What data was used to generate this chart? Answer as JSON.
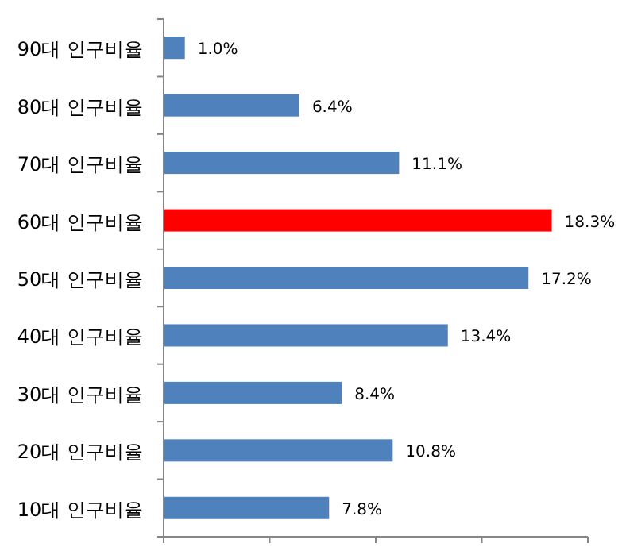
{
  "chart_data": {
    "type": "bar",
    "orientation": "horizontal",
    "categories": [
      "90대 인구비율",
      "80대 인구비율",
      "70대 인구비율",
      "60대 인구비율",
      "50대 인구비율",
      "40대 인구비율",
      "30대 인구비율",
      "20대 인구비율",
      "10대 인구비율"
    ],
    "values": [
      1.0,
      6.4,
      11.1,
      18.3,
      17.2,
      13.4,
      8.4,
      10.8,
      7.8
    ],
    "value_labels": [
      "1.0%",
      "6.4%",
      "11.1%",
      "18.3%",
      "17.2%",
      "13.4%",
      "8.4%",
      "10.8%",
      "7.8%"
    ],
    "colors": [
      "#4f81bd",
      "#4f81bd",
      "#4f81bd",
      "#ff0000",
      "#4f81bd",
      "#4f81bd",
      "#4f81bd",
      "#4f81bd",
      "#4f81bd"
    ],
    "xlim": [
      0,
      20
    ],
    "xticks": [
      {
        "value": 0,
        "label": null
      },
      {
        "value": 5,
        "label": null
      },
      {
        "value": 10,
        "label": null
      },
      {
        "value": 15,
        "label": null
      },
      {
        "value": 20,
        "label": null
      }
    ],
    "tick_labels": "y"
  }
}
